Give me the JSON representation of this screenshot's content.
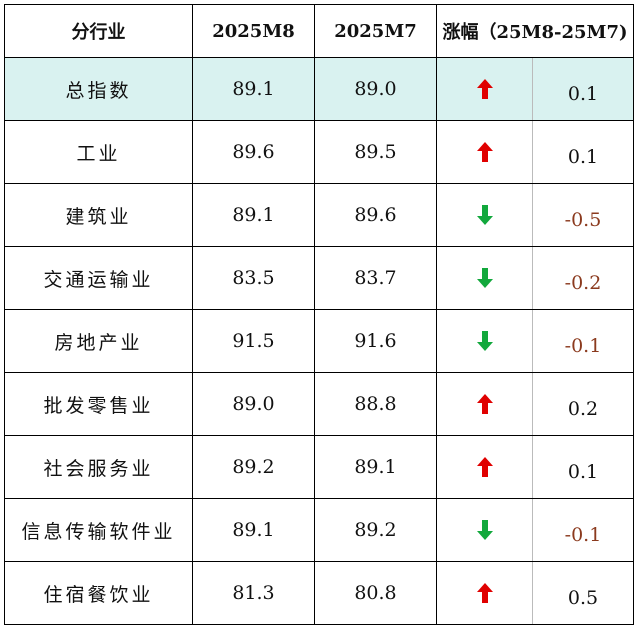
{
  "headers": [
    "分行业",
    "2025M8",
    "2025M7",
    "涨幅（25M8-25M7)"
  ],
  "colors": {
    "up": "#e00000",
    "down": "#12a83c",
    "highlight_bg": "#d9f2f0",
    "negative_text": "#8b3a1e"
  },
  "rows": [
    {
      "name": "总指数",
      "m8": "89.1",
      "m7": "89.0",
      "dir": "up",
      "change": "0.1"
    },
    {
      "name": "工业",
      "m8": "89.6",
      "m7": "89.5",
      "dir": "up",
      "change": "0.1"
    },
    {
      "name": "建筑业",
      "m8": "89.1",
      "m7": "89.6",
      "dir": "down",
      "change": "-0.5"
    },
    {
      "name": "交通运输业",
      "m8": "83.5",
      "m7": "83.7",
      "dir": "down",
      "change": "-0.2"
    },
    {
      "name": "房地产业",
      "m8": "91.5",
      "m7": "91.6",
      "dir": "down",
      "change": "-0.1"
    },
    {
      "name": "批发零售业",
      "m8": "89.0",
      "m7": "88.8",
      "dir": "up",
      "change": "0.2"
    },
    {
      "name": "社会服务业",
      "m8": "89.2",
      "m7": "89.1",
      "dir": "up",
      "change": "0.1"
    },
    {
      "name": "信息传输软件业",
      "m8": "89.1",
      "m7": "89.2",
      "dir": "down",
      "change": "-0.1"
    },
    {
      "name": "住宿餐饮业",
      "m8": "81.3",
      "m7": "80.8",
      "dir": "up",
      "change": "0.5"
    }
  ]
}
